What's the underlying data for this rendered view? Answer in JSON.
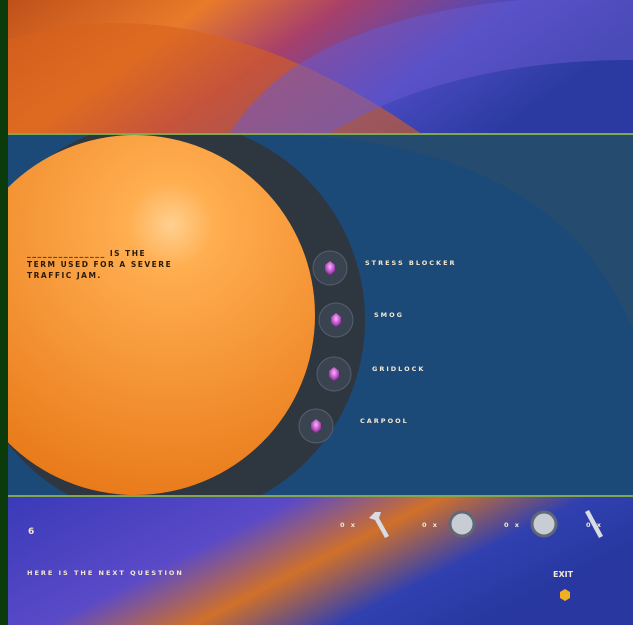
{
  "question": {
    "number": "6",
    "text": "_______________ IS THE TERM USED FOR A SEVERE TRAFFIC JAM."
  },
  "options": [
    "STRESS BLOCKER",
    "SMOG",
    "GRIDLOCK",
    "CARPOOL"
  ],
  "inventory": [
    "0 x",
    "0 x",
    "0 x",
    "0 x"
  ],
  "message": "HERE IS THE NEXT QUESTION",
  "exit": "EXIT"
}
